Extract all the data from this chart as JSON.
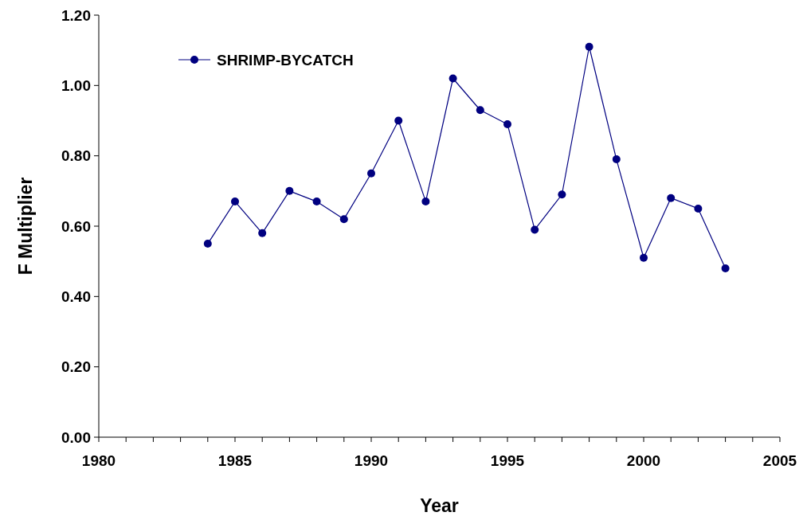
{
  "chart_data": {
    "type": "line",
    "xlabel": "Year",
    "ylabel": "F Multiplier",
    "x": [
      1984,
      1985,
      1986,
      1987,
      1988,
      1989,
      1990,
      1991,
      1992,
      1993,
      1994,
      1995,
      1996,
      1997,
      1998,
      1999,
      2000,
      2001,
      2002,
      2003
    ],
    "series": [
      {
        "name": "SHRIMP-BYCATCH",
        "color": "#000080",
        "values": [
          0.55,
          0.67,
          0.58,
          0.7,
          0.67,
          0.62,
          0.75,
          0.9,
          0.67,
          1.02,
          0.93,
          0.89,
          0.59,
          0.69,
          1.11,
          0.79,
          0.51,
          0.68,
          0.65,
          0.48
        ]
      }
    ],
    "xlim": [
      1980,
      2005
    ],
    "xticks": [
      1980,
      {
        "value": 1981,
        "label": null
      },
      {
        "value": 1982,
        "label": null
      },
      {
        "value": 1983,
        "label": null
      },
      {
        "value": 1984,
        "label": null
      },
      1985,
      {
        "value": 1986,
        "label": null
      },
      {
        "value": 1987,
        "label": null
      },
      {
        "value": 1988,
        "label": null
      },
      {
        "value": 1989,
        "label": null
      },
      1990,
      {
        "value": 1991,
        "label": null
      },
      {
        "value": 1992,
        "label": null
      },
      {
        "value": 1993,
        "label": null
      },
      {
        "value": 1994,
        "label": null
      },
      1995,
      {
        "value": 1996,
        "label": null
      },
      {
        "value": 1997,
        "label": null
      },
      {
        "value": 1998,
        "label": null
      },
      {
        "value": 1999,
        "label": null
      },
      2000,
      {
        "value": 2001,
        "label": null
      },
      {
        "value": 2002,
        "label": null
      },
      {
        "value": 2003,
        "label": null
      },
      {
        "value": 2004,
        "label": null
      },
      2005
    ],
    "ylim": [
      0,
      1.2
    ],
    "yticks": [
      {
        "value": 0,
        "label": "0.00"
      },
      {
        "value": 0.2,
        "label": "0.20"
      },
      {
        "value": 0.4,
        "label": "0.40"
      },
      {
        "value": 0.6,
        "label": "0.60"
      },
      {
        "value": 0.8,
        "label": "0.80"
      },
      {
        "value": 1,
        "label": "1.00"
      },
      {
        "value": 1.2,
        "label": "1.20"
      }
    ],
    "grid": false,
    "legend": "top left",
    "marker": "circle",
    "line_style": "solid"
  }
}
